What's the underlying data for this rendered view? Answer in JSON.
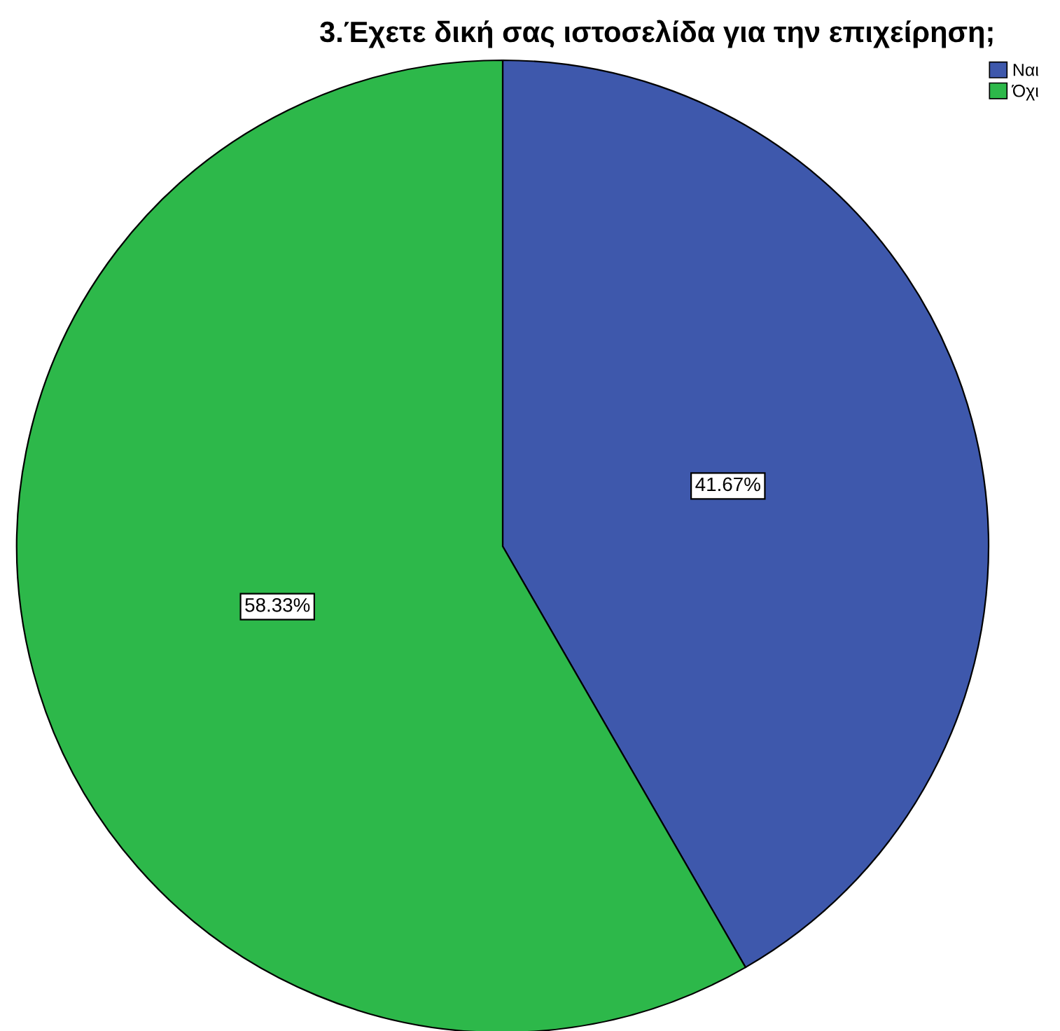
{
  "chart_data": {
    "type": "pie",
    "title": "3.Έχετε δική σας ιστοσελίδα για την επιχείρηση;",
    "categories": [
      "Ναι",
      "Όχι"
    ],
    "values": [
      41.67,
      58.33
    ],
    "colors": [
      "#3e58ac",
      "#2db84a"
    ],
    "value_labels": [
      "41.67%",
      "58.33%"
    ],
    "legend": "top right"
  }
}
